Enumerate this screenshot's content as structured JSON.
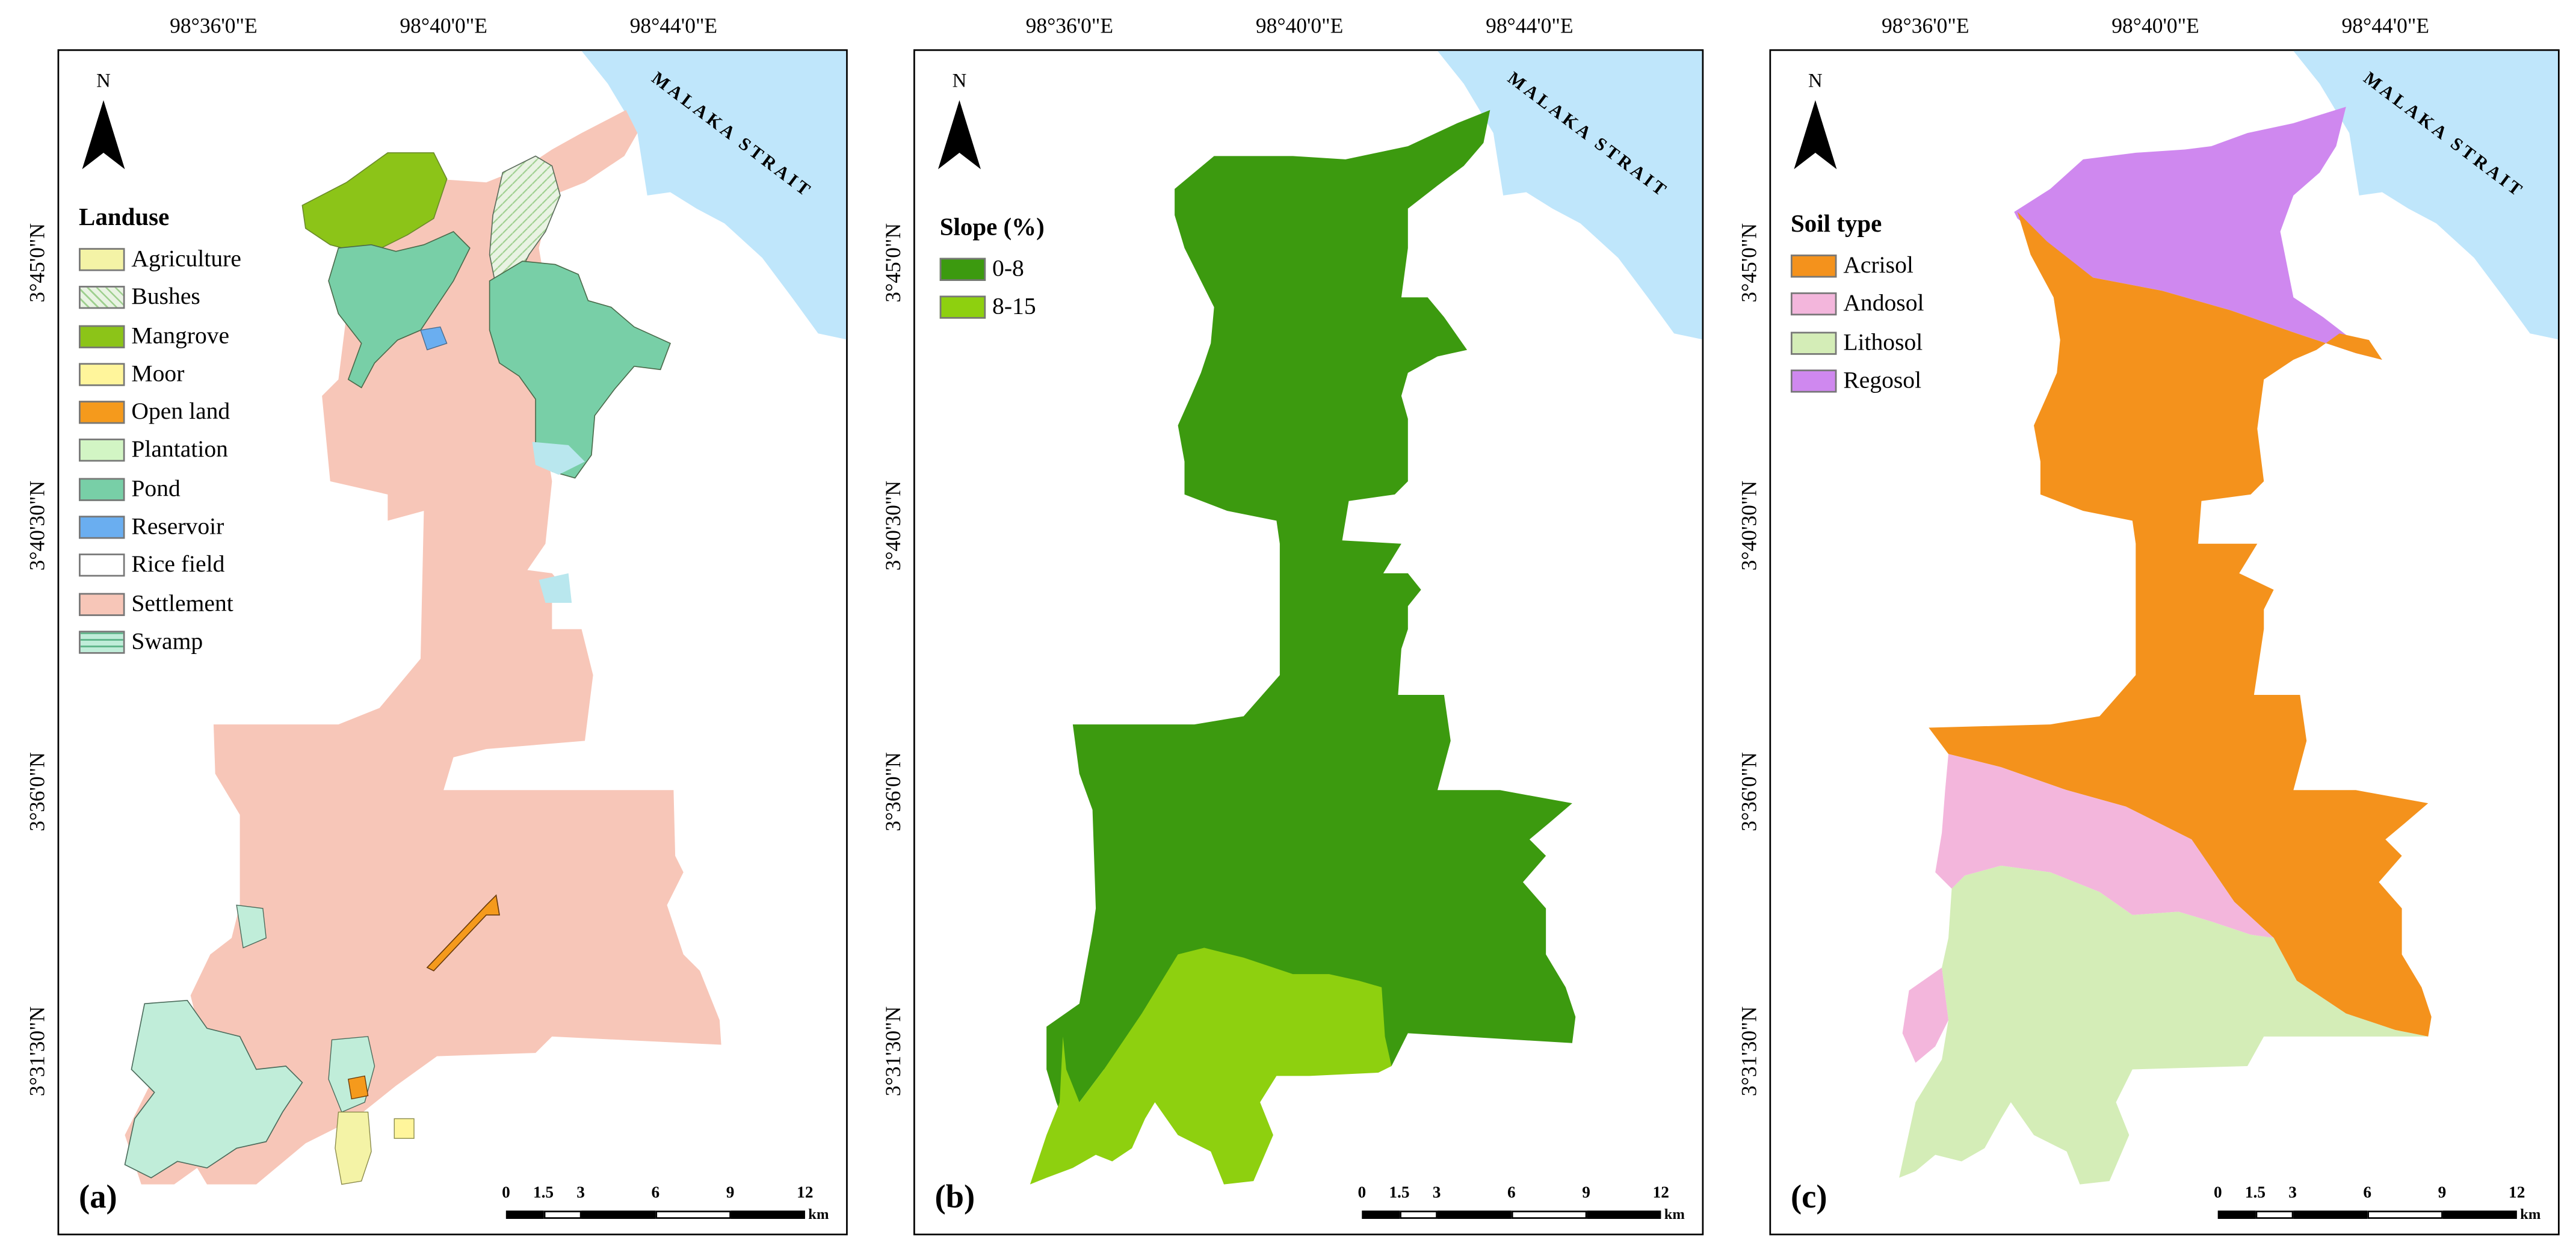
{
  "figure": {
    "lon_labels": [
      "98°36'0\"E",
      "98°40'0\"E",
      "98°44'0\"E"
    ],
    "lat_labels": [
      "3°45'0\"N",
      "3°40'30\"N",
      "3°36'0\"N",
      "3°31'30\"N"
    ],
    "north_label": "N",
    "sea_label": "MALAKA STRAIT",
    "scale_ticks": [
      "0",
      "1.5",
      "3",
      "6",
      "9",
      "12"
    ],
    "scale_unit": "km"
  },
  "panel_a": {
    "label": "(a)",
    "legend_title": "Landuse",
    "legend": [
      {
        "label": "Agriculture",
        "color": "#f4f3a6"
      },
      {
        "label": "Bushes",
        "color": "#e9f3e3"
      },
      {
        "label": "Mangrove",
        "color": "#8cc418"
      },
      {
        "label": "Moor",
        "color": "#fff59b"
      },
      {
        "label": "Open land",
        "color": "#f59a1c"
      },
      {
        "label": "Plantation",
        "color": "#d2f5c4"
      },
      {
        "label": "Pond",
        "color": "#78cfa7"
      },
      {
        "label": "Reservoir",
        "color": "#6aaef0"
      },
      {
        "label": "Rice field",
        "color": "#ffffff"
      },
      {
        "label": "Settlement",
        "color": "#f7c6b8"
      },
      {
        "label": "Swamp",
        "color": "#c0edd9"
      }
    ]
  },
  "panel_b": {
    "label": "(b)",
    "legend_title": "Slope (%)",
    "legend": [
      {
        "label": "0-8",
        "color": "#3c9a0f"
      },
      {
        "label": "8-15",
        "color": "#8ed00f"
      }
    ]
  },
  "panel_c": {
    "label": "(c)",
    "legend_title": "Soil type",
    "legend": [
      {
        "label": "Acrisol",
        "color": "#f4921c"
      },
      {
        "label": "Andosol",
        "color": "#f3b6dc"
      },
      {
        "label": "Lithosol",
        "color": "#d4edb7"
      },
      {
        "label": "Regosol",
        "color": "#cf88ef"
      }
    ]
  },
  "colors": {
    "sea": "#bfe6fb",
    "water_channel": "#b9e7ee"
  }
}
